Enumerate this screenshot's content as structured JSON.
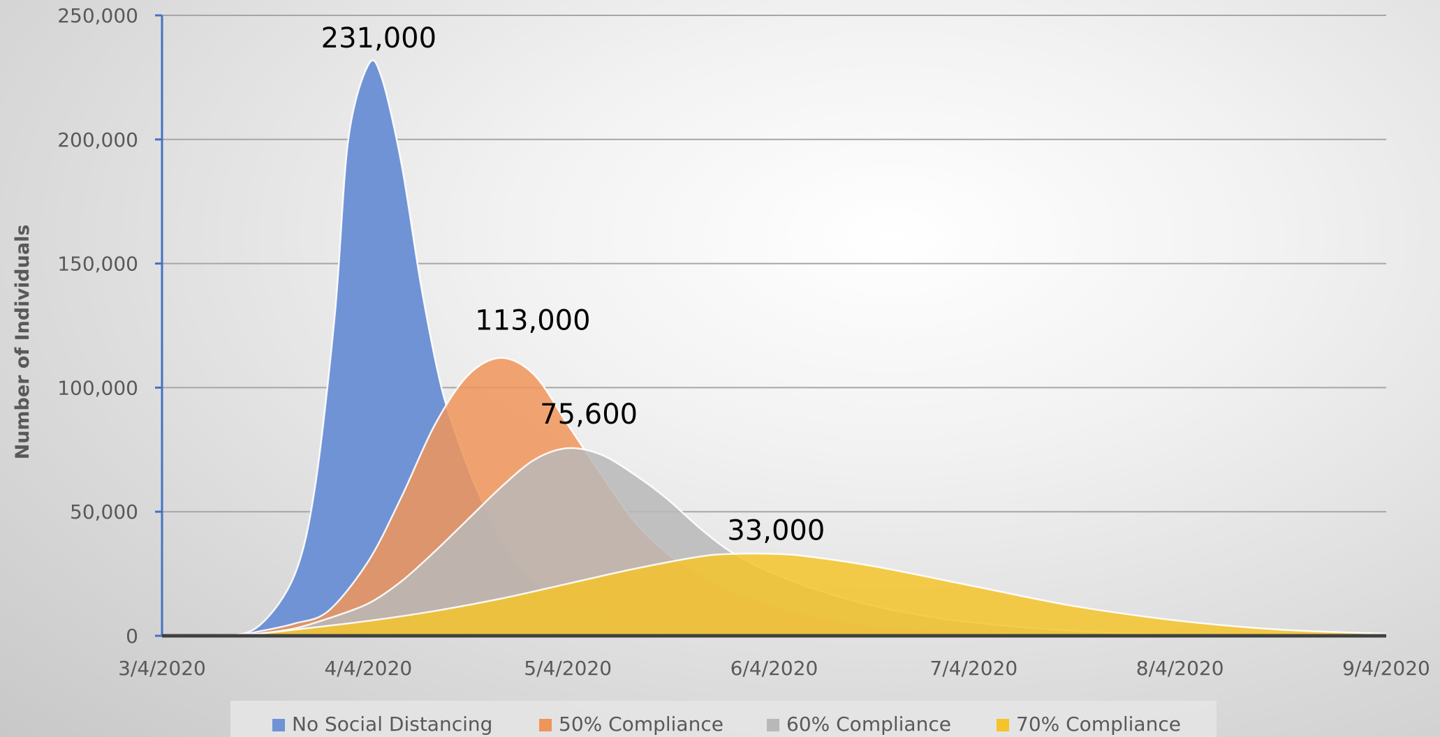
{
  "chart_data": {
    "type": "area",
    "title": "",
    "xlabel": "",
    "ylabel": "Number of Individuals",
    "ylim": [
      0,
      250000
    ],
    "y_ticks": [
      "0",
      "50,000",
      "100,000",
      "150,000",
      "200,000",
      "250,000"
    ],
    "y_tick_values": [
      0,
      50000,
      100000,
      150000,
      200000,
      250000
    ],
    "x_ticks": [
      "3/4/2020",
      "4/4/2020",
      "5/4/2020",
      "6/4/2020",
      "7/4/2020",
      "8/4/2020",
      "9/4/2020"
    ],
    "grid": true,
    "legend_position": "bottom",
    "series": [
      {
        "name": "No Social Distancing",
        "color": "#6f93d4",
        "peak_label": "231,000",
        "x": [
          "3/4/2020",
          "3/14/2020",
          "3/19/2020",
          "3/24/2020",
          "3/27/2020",
          "3/30/2020",
          "4/1/2020",
          "4/4/2020",
          "4/6/2020",
          "4/9/2020",
          "4/12/2020",
          "4/15/2020",
          "4/18/2020",
          "4/21/2020",
          "4/26/2020",
          "5/1/2020",
          "5/6/2020",
          "5/11/2020",
          "5/16/2020",
          "5/26/2020",
          "6/4/2020",
          "6/19/2020",
          "7/4/2020"
        ],
        "y": [
          0,
          0,
          5000,
          25000,
          60000,
          130000,
          200000,
          230000,
          225000,
          190000,
          140000,
          100000,
          75000,
          55000,
          30000,
          18000,
          12000,
          8000,
          5000,
          2500,
          1000,
          300,
          0
        ]
      },
      {
        "name": "50% Compliance",
        "color": "#f0955a",
        "peak_label": "113,000",
        "x": [
          "3/4/2020",
          "3/14/2020",
          "3/19/2020",
          "3/24/2020",
          "3/29/2020",
          "4/4/2020",
          "4/9/2020",
          "4/14/2020",
          "4/19/2020",
          "4/24/2020",
          "4/29/2020",
          "5/4/2020",
          "5/9/2020",
          "5/14/2020",
          "5/19/2020",
          "5/24/2020",
          "5/29/2020",
          "6/4/2020",
          "6/14/2020",
          "6/24/2020",
          "7/4/2020",
          "7/19/2020",
          "8/4/2020"
        ],
        "y": [
          0,
          0,
          2000,
          5000,
          10000,
          30000,
          56000,
          85000,
          105000,
          112000,
          105000,
          85000,
          65000,
          46000,
          33000,
          25000,
          18000,
          12000,
          6000,
          3000,
          1500,
          500,
          0
        ]
      },
      {
        "name": "60% Compliance",
        "color": "#b8b8b8",
        "peak_label": "75,600",
        "x": [
          "3/4/2020",
          "3/14/2020",
          "3/19/2020",
          "3/24/2020",
          "3/29/2020",
          "4/4/2020",
          "4/9/2020",
          "4/14/2020",
          "4/19/2020",
          "4/24/2020",
          "4/29/2020",
          "5/4/2020",
          "5/9/2020",
          "5/14/2020",
          "5/19/2020",
          "5/24/2020",
          "5/29/2020",
          "6/4/2020",
          "6/11/2020",
          "6/19/2020",
          "6/29/2020",
          "7/9/2020",
          "7/19/2020",
          "7/29/2020",
          "8/9/2020"
        ],
        "y": [
          0,
          0,
          1000,
          3000,
          7000,
          13000,
          22000,
          34000,
          47000,
          60000,
          71000,
          75600,
          73000,
          65000,
          55000,
          43000,
          33000,
          25000,
          18000,
          12000,
          7000,
          4000,
          2000,
          800,
          0
        ]
      },
      {
        "name": "70% Compliance",
        "color": "#f5c32c",
        "peak_label": "33,000",
        "x": [
          "3/4/2020",
          "3/14/2020",
          "3/19/2020",
          "3/24/2020",
          "4/4/2020",
          "4/14/2020",
          "4/24/2020",
          "5/4/2020",
          "5/14/2020",
          "5/24/2020",
          "5/29/2020",
          "6/4/2020",
          "6/9/2020",
          "6/19/2020",
          "7/4/2020",
          "7/19/2020",
          "8/4/2020",
          "8/19/2020",
          "9/4/2020"
        ],
        "y": [
          0,
          0,
          1000,
          2500,
          6000,
          10000,
          15000,
          21000,
          27000,
          32000,
          33000,
          33000,
          32000,
          28000,
          20000,
          12000,
          6000,
          2500,
          800
        ]
      }
    ]
  }
}
